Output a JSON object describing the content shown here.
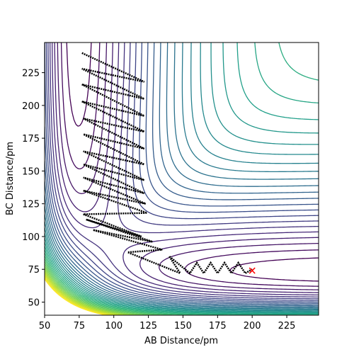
{
  "chart_data": {
    "type": "contour",
    "x_label": "AB Distance/pm",
    "y_label": "BC Distance/pm",
    "xlim": [
      50,
      248
    ],
    "ylim": [
      40,
      248
    ],
    "xticks": [
      50,
      75,
      100,
      125,
      150,
      175,
      200,
      225
    ],
    "yticks": [
      50,
      75,
      100,
      125,
      150,
      175,
      200,
      225
    ],
    "colormap": "viridis",
    "levels": [
      -0.96,
      -0.92,
      -0.88,
      -0.84,
      -0.8,
      -0.76,
      -0.72,
      -0.68,
      -0.64,
      -0.6,
      -0.56,
      -0.52,
      -0.48,
      -0.44,
      -0.4,
      -0.36,
      -0.32,
      -0.28,
      -0.24,
      -0.2,
      -0.16,
      -0.12,
      -0.08,
      -0.04,
      0,
      0.04,
      0.08,
      0.12,
      0.16,
      0.2,
      0.24,
      0.28,
      0.32,
      0.36,
      0.4
    ],
    "trajectory": {
      "color": "#000000",
      "x": [
        77,
        122,
        77,
        122,
        77,
        122,
        77,
        122,
        78,
        122,
        78,
        122,
        78,
        122,
        78,
        122,
        78,
        123,
        78,
        124,
        78,
        120,
        80,
        128,
        85,
        135,
        110,
        148,
        140,
        155,
        160,
        165,
        170,
        175,
        180,
        185,
        190,
        195,
        200
      ],
      "y": [
        240,
        218,
        228,
        205,
        216,
        192,
        203,
        180,
        190,
        167,
        178,
        155,
        165,
        143,
        155,
        133,
        145,
        125,
        135,
        118,
        117,
        100,
        113,
        96,
        105,
        90,
        88,
        72,
        85,
        72,
        80,
        72,
        80,
        72,
        80,
        72,
        80,
        72,
        75
      ]
    },
    "end_point": {
      "x": 200,
      "y": 74,
      "color": "#ff0000"
    }
  }
}
